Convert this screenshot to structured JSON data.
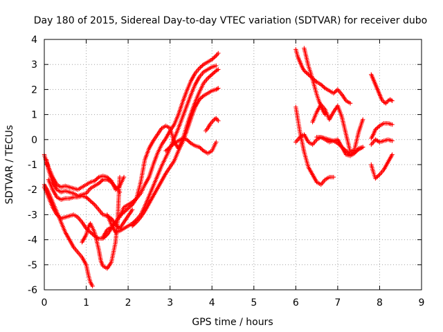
{
  "chart_data": {
    "type": "scatter",
    "title": "Day 180 of 2015, Sidereal Day-to-day VTEC variation (SDTVAR) for receiver dubo",
    "xlabel": "GPS time / hours",
    "ylabel": "SDTVAR / TECUs",
    "xlim": [
      0,
      9
    ],
    "ylim": [
      -6,
      4
    ],
    "xticks": [
      "0",
      "1",
      "2",
      "3",
      "4",
      "5",
      "6",
      "7",
      "8",
      "9"
    ],
    "yticks": [
      "-6",
      "-5",
      "-4",
      "-3",
      "-2",
      "-1",
      "0",
      "1",
      "2",
      "3",
      "4"
    ],
    "grid": true,
    "marker": "+",
    "color": "#ff0000",
    "series": [
      {
        "x": [
          0.0,
          0.1,
          0.2,
          0.3,
          0.4,
          0.5,
          0.6,
          0.7,
          0.8,
          0.9,
          1.0,
          1.05,
          1.1,
          1.15
        ],
        "y": [
          -1.8,
          -2.1,
          -2.5,
          -2.9,
          -3.3,
          -3.7,
          -4.0,
          -4.3,
          -4.5,
          -4.7,
          -5.0,
          -5.4,
          -5.7,
          -5.85
        ]
      },
      {
        "x": [
          0.0,
          0.05,
          0.1,
          0.2,
          0.3,
          0.4,
          0.5,
          0.6,
          0.7,
          0.8,
          0.9,
          1.0,
          1.1,
          1.2,
          1.3,
          1.4,
          1.5,
          1.6,
          1.7,
          1.8,
          1.9
        ],
        "y": [
          -0.6,
          -0.9,
          -1.1,
          -1.5,
          -1.8,
          -1.9,
          -1.85,
          -1.9,
          -1.95,
          -2.0,
          -1.9,
          -1.8,
          -1.7,
          -1.65,
          -1.5,
          -1.45,
          -1.5,
          -1.65,
          -2.0,
          -1.85,
          -1.5
        ]
      },
      {
        "x": [
          0.05,
          0.1,
          0.2,
          0.3,
          0.4,
          0.5,
          0.6,
          0.7,
          0.8,
          0.9,
          1.0,
          1.1,
          1.2,
          1.3,
          1.4,
          1.5,
          1.6,
          1.7,
          1.8
        ],
        "y": [
          -0.8,
          -1.2,
          -1.7,
          -2.0,
          -2.1,
          -2.05,
          -2.1,
          -2.15,
          -2.25,
          -2.2,
          -2.15,
          -1.95,
          -1.85,
          -1.75,
          -1.6,
          -1.6,
          -1.7,
          -1.9,
          -2.1
        ]
      },
      {
        "x": [
          0.1,
          0.2,
          0.3,
          0.4,
          0.5,
          0.6,
          0.7,
          0.8,
          0.9,
          1.0,
          1.1,
          1.2,
          1.3,
          1.4,
          1.5,
          1.6,
          1.7,
          1.8,
          1.9,
          2.0,
          2.1
        ],
        "y": [
          -1.6,
          -2.0,
          -2.3,
          -2.4,
          -2.35,
          -2.35,
          -2.3,
          -2.3,
          -2.25,
          -2.3,
          -2.45,
          -2.6,
          -2.8,
          -3.0,
          -3.05,
          -3.15,
          -3.4,
          -3.55,
          -3.3,
          -3.05,
          -2.8
        ]
      },
      {
        "x": [
          0.0,
          0.1,
          0.2,
          0.3,
          0.4,
          0.5,
          0.6,
          0.7,
          0.8,
          0.9,
          1.0,
          1.1,
          1.2,
          1.3,
          1.4,
          1.5,
          1.6,
          1.7
        ],
        "y": [
          -1.9,
          -2.3,
          -2.7,
          -3.0,
          -3.15,
          -3.1,
          -3.05,
          -3.0,
          -3.1,
          -3.3,
          -3.55,
          -3.7,
          -3.85,
          -3.95,
          -3.95,
          -3.8,
          -3.55,
          -3.3
        ]
      },
      {
        "x": [
          0.9,
          1.0,
          1.05,
          1.1,
          1.2,
          1.3,
          1.35,
          1.4,
          1.5,
          1.6,
          1.7,
          1.75,
          1.8
        ],
        "y": [
          -4.1,
          -3.8,
          -3.5,
          -3.35,
          -3.7,
          -4.4,
          -4.85,
          -5.05,
          -5.15,
          -4.9,
          -4.1,
          -3.2,
          -1.5
        ]
      },
      {
        "x": [
          1.4,
          1.5,
          1.6,
          1.7,
          1.8,
          1.9,
          2.0,
          2.1,
          2.2,
          2.3,
          2.4,
          2.5,
          2.6,
          2.7,
          2.8,
          2.9,
          3.0,
          3.1,
          3.2,
          3.3,
          3.4,
          3.5,
          3.6,
          3.7,
          3.8,
          3.9,
          4.0,
          4.1,
          4.15
        ],
        "y": [
          -3.9,
          -3.6,
          -3.5,
          -3.3,
          -3.05,
          -2.9,
          -2.75,
          -2.6,
          -2.35,
          -1.7,
          -0.8,
          -0.35,
          -0.05,
          0.2,
          0.45,
          0.55,
          0.45,
          -0.1,
          -0.35,
          0.0,
          0.55,
          1.05,
          1.5,
          1.9,
          2.25,
          2.45,
          2.6,
          2.75,
          2.8
        ]
      },
      {
        "x": [
          1.8,
          1.9,
          2.0,
          2.1,
          2.2,
          2.3,
          2.4,
          2.5,
          2.6,
          2.7,
          2.8,
          2.9,
          3.0,
          3.1,
          3.2,
          3.3,
          3.4,
          3.5,
          3.6,
          3.7,
          3.8,
          3.9,
          4.0,
          4.1,
          4.15
        ],
        "y": [
          -3.1,
          -2.7,
          -2.6,
          -2.5,
          -2.35,
          -2.15,
          -1.8,
          -1.5,
          -1.0,
          -0.55,
          -0.2,
          0.05,
          0.35,
          0.6,
          1.0,
          1.5,
          1.95,
          2.35,
          2.65,
          2.85,
          3.0,
          3.1,
          3.2,
          3.35,
          3.45
        ]
      },
      {
        "x": [
          1.5,
          1.6,
          1.7,
          1.8,
          1.9,
          2.0,
          2.1,
          2.2,
          2.3,
          2.4,
          2.5,
          2.6,
          2.7,
          2.8,
          2.9,
          3.0,
          3.1,
          3.2,
          3.3,
          3.4,
          3.5,
          3.6,
          3.7,
          3.8,
          3.9,
          4.0,
          4.1
        ],
        "y": [
          -3.0,
          -3.4,
          -3.7,
          -3.65,
          -3.55,
          -3.45,
          -3.35,
          -3.2,
          -3.0,
          -2.65,
          -2.25,
          -1.85,
          -1.45,
          -1.05,
          -0.7,
          -0.35,
          0.05,
          0.45,
          0.9,
          1.35,
          1.8,
          2.2,
          2.5,
          2.7,
          2.8,
          2.9,
          2.95
        ]
      },
      {
        "x": [
          2.1,
          2.2,
          2.3,
          2.4,
          2.5,
          2.6,
          2.7,
          2.8,
          2.9,
          3.0,
          3.1,
          3.2,
          3.3,
          3.4,
          3.5,
          3.6,
          3.7,
          3.8,
          3.9,
          4.0,
          4.1,
          4.15
        ],
        "y": [
          -3.45,
          -3.3,
          -3.1,
          -2.85,
          -2.55,
          -2.25,
          -1.95,
          -1.65,
          -1.35,
          -1.1,
          -0.85,
          -0.45,
          -0.1,
          0.35,
          0.85,
          1.3,
          1.6,
          1.75,
          1.85,
          1.95,
          2.0,
          2.05
        ]
      },
      {
        "x": [
          2.9,
          3.0,
          3.1,
          3.2,
          3.3,
          3.4,
          3.5,
          3.6,
          3.7,
          3.8,
          3.9,
          4.0,
          4.1
        ],
        "y": [
          -0.45,
          -0.3,
          -0.15,
          -0.05,
          0.05,
          0.0,
          -0.15,
          -0.25,
          -0.3,
          -0.45,
          -0.55,
          -0.45,
          -0.1
        ]
      },
      {
        "x": [
          3.85,
          3.9,
          3.95,
          4.0,
          4.05,
          4.1,
          4.15
        ],
        "y": [
          0.35,
          0.45,
          0.6,
          0.7,
          0.8,
          0.85,
          0.75
        ]
      },
      {
        "x": [
          6.0,
          6.05,
          6.1,
          6.15,
          6.2,
          6.3,
          6.4,
          6.5,
          6.6,
          6.7,
          6.8,
          6.9,
          7.0,
          7.1,
          7.2,
          7.3
        ],
        "y": [
          3.6,
          3.3,
          3.1,
          2.9,
          2.75,
          2.6,
          2.45,
          2.3,
          2.2,
          2.05,
          1.95,
          1.85,
          2.0,
          1.8,
          1.55,
          1.45
        ]
      },
      {
        "x": [
          6.2,
          6.25,
          6.3,
          6.35,
          6.4,
          6.45,
          6.5,
          6.55,
          6.6,
          6.65,
          6.7
        ],
        "y": [
          3.65,
          3.3,
          2.95,
          2.7,
          2.4,
          2.1,
          1.8,
          1.55,
          1.35,
          1.15,
          1.0
        ]
      },
      {
        "x": [
          6.0,
          6.05,
          6.1,
          6.15,
          6.2,
          6.25,
          6.3,
          6.4,
          6.5,
          6.6,
          6.7,
          6.8,
          6.9
        ],
        "y": [
          1.3,
          0.8,
          0.3,
          -0.1,
          -0.5,
          -0.8,
          -1.1,
          -1.4,
          -1.7,
          -1.8,
          -1.6,
          -1.5,
          -1.5
        ]
      },
      {
        "x": [
          6.0,
          6.1,
          6.2,
          6.3,
          6.4,
          6.5,
          6.6,
          6.7,
          6.8,
          6.9,
          7.0,
          7.1,
          7.2,
          7.3,
          7.4,
          7.5,
          7.6
        ],
        "y": [
          -0.1,
          0.1,
          0.2,
          -0.1,
          -0.2,
          0.0,
          0.1,
          0.0,
          -0.1,
          -0.05,
          -0.15,
          -0.3,
          -0.45,
          -0.6,
          -0.5,
          -0.4,
          -0.3
        ]
      },
      {
        "x": [
          6.4,
          6.5,
          6.6,
          6.7,
          6.8,
          6.9,
          7.0,
          7.1,
          7.2,
          7.3,
          7.4,
          7.5,
          7.6
        ],
        "y": [
          0.7,
          1.1,
          1.4,
          1.2,
          0.8,
          1.1,
          1.35,
          0.9,
          0.2,
          -0.5,
          -0.4,
          0.3,
          0.8
        ]
      },
      {
        "x": [
          6.5,
          6.6,
          6.7,
          6.8,
          6.9,
          7.0,
          7.1,
          7.2,
          7.3,
          7.4,
          7.5,
          7.6
        ],
        "y": [
          0.1,
          0.1,
          0.05,
          0.0,
          -0.05,
          0.0,
          -0.3,
          -0.6,
          -0.65,
          -0.55,
          -0.35,
          -0.3
        ]
      },
      {
        "x": [
          7.8,
          7.85,
          7.9,
          7.95,
          8.0,
          8.05,
          8.1,
          8.15,
          8.2,
          8.25,
          8.3
        ],
        "y": [
          2.6,
          2.4,
          2.2,
          2.0,
          1.8,
          1.6,
          1.5,
          1.45,
          1.55,
          1.6,
          1.55
        ]
      },
      {
        "x": [
          7.8,
          7.85,
          7.9,
          8.0,
          8.1,
          8.2,
          8.3
        ],
        "y": [
          0.05,
          0.2,
          0.4,
          0.55,
          0.65,
          0.65,
          0.6
        ]
      },
      {
        "x": [
          7.8,
          7.85,
          7.9,
          7.95,
          8.0,
          8.1,
          8.2,
          8.3
        ],
        "y": [
          -0.2,
          -0.1,
          0.0,
          -0.05,
          -0.1,
          -0.05,
          0.0,
          -0.05
        ]
      },
      {
        "x": [
          7.8,
          7.85,
          7.9,
          8.0,
          8.1,
          8.2,
          8.3
        ],
        "y": [
          -1.0,
          -1.3,
          -1.55,
          -1.4,
          -1.2,
          -0.9,
          -0.6
        ]
      }
    ]
  }
}
